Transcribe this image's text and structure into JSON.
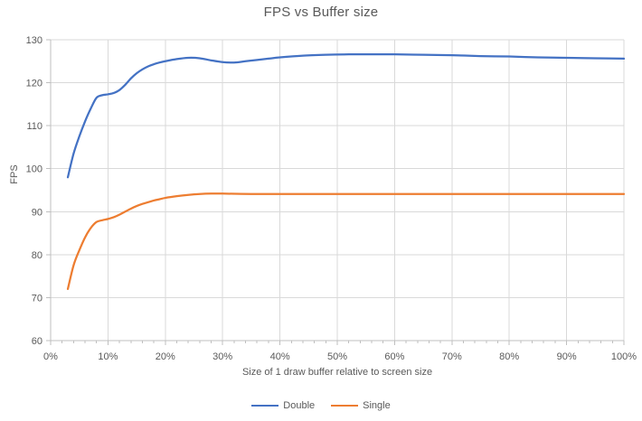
{
  "colors": {
    "background": "#FFFFFF",
    "grid": "#D9D9D9",
    "axis": "#BFBFBF",
    "tick_text": "#595959",
    "title_text": "#595959",
    "series_double": "#4472C4",
    "series_single": "#ED7D31"
  },
  "chart_data": {
    "type": "line",
    "title": "FPS vs Buffer size",
    "xlabel": "Size of 1 draw buffer relative to screen size",
    "ylabel": "FPS",
    "xlim": [
      0,
      100
    ],
    "ylim": [
      60,
      130
    ],
    "grid": "both",
    "legend_position": "bottom",
    "x_tick_values": [
      0,
      10,
      20,
      30,
      40,
      50,
      60,
      70,
      80,
      90,
      100
    ],
    "x_ticks": [
      "0%",
      "10%",
      "20%",
      "30%",
      "40%",
      "50%",
      "60%",
      "70%",
      "80%",
      "90%",
      "100%"
    ],
    "x_minor_tick_step": 2,
    "y_ticks": [
      60,
      70,
      80,
      90,
      100,
      110,
      120,
      130
    ],
    "series": [
      {
        "name": "Double",
        "color": "#4472C4",
        "x": [
          3,
          4,
          5,
          6,
          7,
          8,
          9,
          10,
          11,
          12,
          13,
          14,
          15,
          16,
          17,
          18,
          19,
          20,
          22,
          24,
          26,
          28,
          30,
          32,
          34,
          36,
          38,
          40,
          44,
          48,
          52,
          56,
          60,
          65,
          70,
          75,
          80,
          85,
          90,
          95,
          100
        ],
        "y": [
          98,
          103.5,
          107.5,
          111,
          114,
          116.5,
          117.1,
          117.3,
          117.6,
          118.3,
          119.5,
          121,
          122.2,
          123.1,
          123.8,
          124.3,
          124.7,
          125,
          125.5,
          125.8,
          125.7,
          125.2,
          124.8,
          124.7,
          125,
          125.3,
          125.6,
          125.9,
          126.3,
          126.5,
          126.6,
          126.6,
          126.6,
          126.5,
          126.4,
          126.2,
          126.1,
          125.9,
          125.8,
          125.7,
          125.6
        ]
      },
      {
        "name": "Single",
        "color": "#ED7D31",
        "x": [
          3,
          4,
          5,
          6,
          7,
          8,
          9,
          10,
          11,
          12,
          13,
          14,
          15,
          16,
          17,
          18,
          19,
          20,
          22,
          24,
          26,
          28,
          30,
          35,
          40,
          45,
          50,
          55,
          60,
          65,
          70,
          75,
          80,
          85,
          90,
          95,
          100
        ],
        "y": [
          72,
          77.5,
          81,
          84,
          86.2,
          87.6,
          88,
          88.3,
          88.7,
          89.3,
          90,
          90.7,
          91.3,
          91.8,
          92.2,
          92.6,
          92.9,
          93.2,
          93.6,
          93.9,
          94.1,
          94.2,
          94.2,
          94.1,
          94.1,
          94.1,
          94.1,
          94.1,
          94.1,
          94.1,
          94.1,
          94.1,
          94.1,
          94.1,
          94.1,
          94.1,
          94.1
        ]
      }
    ]
  }
}
